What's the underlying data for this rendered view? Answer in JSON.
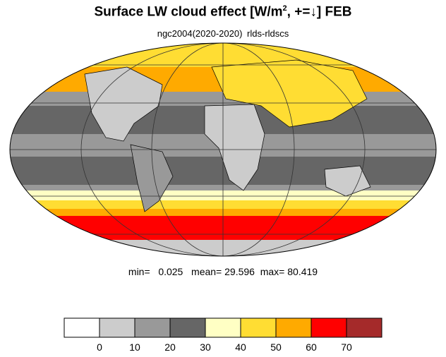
{
  "title": {
    "main": "Surface LW cloud effect [W/m",
    "sup": "2",
    "rest": ", +=↓]  FEB"
  },
  "subtitle": "ngc2004(2020-2020)   rlds-rldscs",
  "stats": {
    "min_label": "min=",
    "min": "0.025",
    "mean_label": "mean=",
    "mean": "29.596",
    "max_label": "max=",
    "max": "80.419"
  },
  "colorbar": {
    "colors": [
      "#ffffff",
      "#cccccc",
      "#999999",
      "#666666",
      "#ffffc4",
      "#ffdd33",
      "#ffaa00",
      "#ff0000",
      "#a52a2a"
    ],
    "ticks": [
      "0",
      "10",
      "20",
      "30",
      "40",
      "50",
      "60",
      "70"
    ]
  },
  "map": {
    "projection": "Mollweide",
    "variable": "Surface LW cloud effect"
  }
}
